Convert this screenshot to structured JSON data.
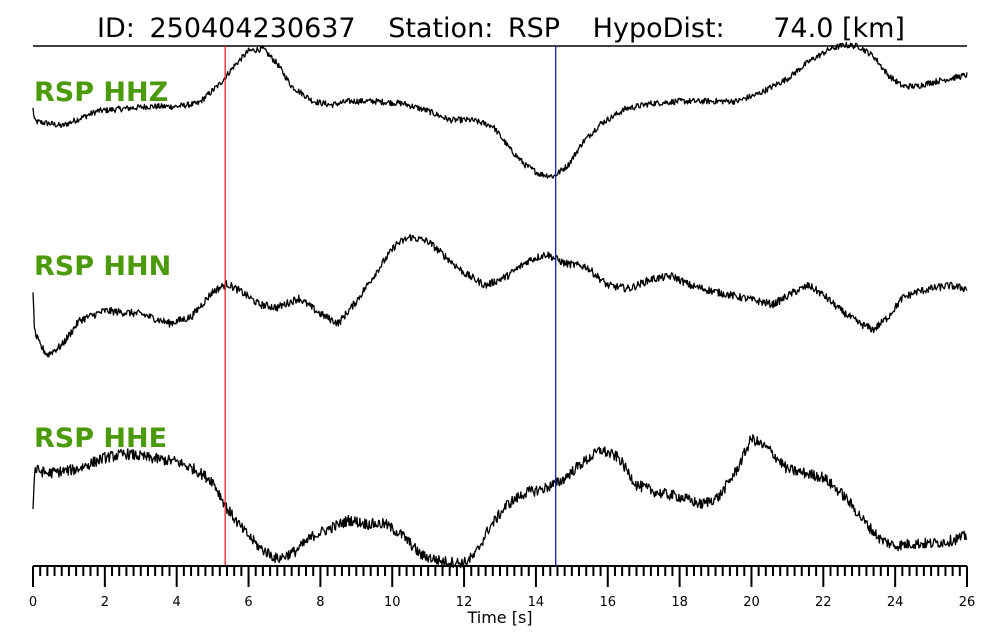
{
  "title": {
    "id_label": "ID:",
    "id_value": "250404230637",
    "station_label": "Station:",
    "station_value": "RSP",
    "dist_label": "HypoDist:",
    "dist_value": "74.0 [km]"
  },
  "chart_data": {
    "type": "line",
    "xlabel": "Time [s]",
    "xlim": [
      0,
      26
    ],
    "xticks": [
      0,
      2,
      4,
      6,
      8,
      10,
      12,
      14,
      16,
      18,
      20,
      22,
      24,
      26
    ],
    "minor_tick_step": 0.2,
    "grid": false,
    "legend": "none",
    "markers": [
      {
        "x": 5.35,
        "color": "#e02020"
      },
      {
        "x": 14.55,
        "color": "#1a1aa8"
      }
    ],
    "trace_color": "#000000",
    "label_color": "#4a9a0a",
    "series": [
      {
        "name": "RSP HHZ",
        "noise": 0.04,
        "x": [
          0,
          0.05,
          0.5,
          0.8,
          1.2,
          1.8,
          2.5,
          3.2,
          4,
          4.6,
          5.2,
          5.6,
          6,
          6.4,
          6.8,
          7.2,
          7.8,
          8.3,
          8.8,
          9.5,
          10.3,
          11,
          11.6,
          12.2,
          12.8,
          13.3,
          13.7,
          14.1,
          14.5,
          14.9,
          15.3,
          15.8,
          16.5,
          17.2,
          18,
          18.8,
          19.6,
          20.2,
          21,
          21.6,
          22.2,
          22.6,
          23,
          23.4,
          23.8,
          24.2,
          24.6,
          25,
          25.5,
          26
        ],
        "y": [
          0.15,
          -0.02,
          -0.05,
          -0.08,
          0.0,
          0.12,
          0.15,
          0.18,
          0.18,
          0.22,
          0.48,
          0.72,
          0.92,
          0.95,
          0.75,
          0.45,
          0.25,
          0.2,
          0.25,
          0.25,
          0.22,
          0.12,
          0.0,
          0.0,
          -0.08,
          -0.4,
          -0.6,
          -0.72,
          -0.75,
          -0.6,
          -0.3,
          -0.05,
          0.15,
          0.22,
          0.25,
          0.25,
          0.25,
          0.35,
          0.55,
          0.78,
          0.95,
          1.0,
          0.98,
          0.85,
          0.6,
          0.45,
          0.45,
          0.5,
          0.55,
          0.6
        ]
      },
      {
        "name": "RSP HHN",
        "noise": 0.06,
        "x": [
          0,
          0.05,
          0.2,
          0.4,
          0.8,
          1.3,
          2,
          3,
          3.8,
          4.4,
          5,
          5.4,
          5.8,
          6.3,
          6.8,
          7.4,
          8,
          8.5,
          9,
          9.6,
          10.1,
          10.5,
          11,
          11.5,
          12,
          12.6,
          13.2,
          13.8,
          14.3,
          14.8,
          15.4,
          16,
          16.6,
          17.2,
          17.8,
          18.3,
          19,
          19.8,
          20.6,
          21.2,
          21.6,
          22,
          22.5,
          23,
          23.4,
          23.8,
          24.2,
          24.6,
          25,
          25.5,
          26
        ],
        "y": [
          0.0,
          -0.6,
          -0.8,
          -0.95,
          -0.8,
          -0.4,
          -0.25,
          -0.3,
          -0.45,
          -0.35,
          0.05,
          0.18,
          0.05,
          -0.15,
          -0.2,
          -0.05,
          -0.3,
          -0.45,
          -0.1,
          0.4,
          0.8,
          0.92,
          0.85,
          0.6,
          0.35,
          0.15,
          0.3,
          0.55,
          0.65,
          0.5,
          0.45,
          0.15,
          0.1,
          0.25,
          0.3,
          0.15,
          0.05,
          -0.05,
          -0.15,
          0.05,
          0.15,
          0.0,
          -0.25,
          -0.45,
          -0.55,
          -0.35,
          -0.05,
          0.05,
          0.1,
          0.15,
          0.1
        ]
      },
      {
        "name": "RSP HHE",
        "noise": 0.07,
        "x": [
          0,
          0.05,
          0.4,
          1.2,
          2,
          2.6,
          3.2,
          4,
          4.5,
          5,
          5.4,
          5.8,
          6.3,
          6.8,
          7.3,
          7.8,
          8.3,
          8.8,
          9.3,
          9.8,
          10.3,
          10.8,
          11.4,
          12,
          12.3,
          12.7,
          13.2,
          13.7,
          14.2,
          14.7,
          15.2,
          15.8,
          16.3,
          16.8,
          17.4,
          18,
          18.6,
          19.1,
          19.6,
          20,
          20.5,
          21,
          21.5,
          22,
          22.6,
          23.2,
          23.6,
          24,
          24.5,
          25,
          25.5,
          26
        ],
        "y": [
          -0.3,
          0.2,
          0.15,
          0.2,
          0.35,
          0.4,
          0.35,
          0.3,
          0.2,
          0.05,
          -0.3,
          -0.55,
          -0.8,
          -0.95,
          -0.85,
          -0.65,
          -0.55,
          -0.45,
          -0.5,
          -0.5,
          -0.65,
          -0.9,
          -0.98,
          -1.0,
          -0.9,
          -0.55,
          -0.25,
          -0.1,
          -0.05,
          0.05,
          0.25,
          0.45,
          0.35,
          0.0,
          -0.1,
          -0.15,
          -0.25,
          -0.15,
          0.2,
          0.6,
          0.45,
          0.2,
          0.15,
          0.1,
          -0.15,
          -0.5,
          -0.7,
          -0.78,
          -0.75,
          -0.75,
          -0.72,
          -0.65
        ]
      }
    ]
  }
}
